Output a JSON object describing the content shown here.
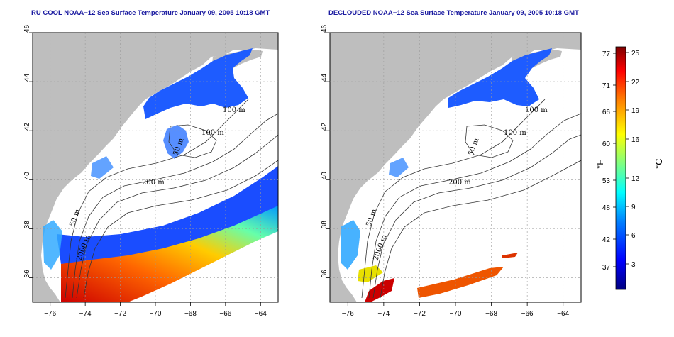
{
  "panels": [
    {
      "id": "ru-cool",
      "title": "RU COOL NOAA−12 Sea Surface Temperature January 09, 2005 10:18 GMT",
      "contours": [
        "100 m",
        "100 m",
        "200 m",
        "50 m",
        "2000 m",
        "50 m"
      ]
    },
    {
      "id": "declouded",
      "title": "DECLOUDED NOAA−12 Sea Surface Temperature January 09, 2005 10:18 GMT",
      "contours": [
        "100 m",
        "100 m",
        "200 m",
        "50 m",
        "2000 m",
        "50 m"
      ]
    }
  ],
  "axes": {
    "lat_ticks": [
      "46",
      "44",
      "42",
      "40",
      "38",
      "36"
    ],
    "lon_ticks": [
      "−76",
      "−74",
      "−72",
      "−70",
      "−68",
      "−66",
      "−64"
    ]
  },
  "colorbar": {
    "fahrenheit_ticks": [
      "77",
      "71",
      "66",
      "60",
      "53",
      "48",
      "42",
      "37"
    ],
    "celsius_ticks": [
      "25",
      "22",
      "19",
      "16",
      "12",
      "9",
      "6",
      "3"
    ],
    "fahrenheit_label": "°F",
    "celsius_label": "°C",
    "colors": [
      "#00007f",
      "#0000ff",
      "#0080ff",
      "#00ffff",
      "#80ff80",
      "#ffff00",
      "#ff8000",
      "#ff0000",
      "#7f0000"
    ]
  }
}
